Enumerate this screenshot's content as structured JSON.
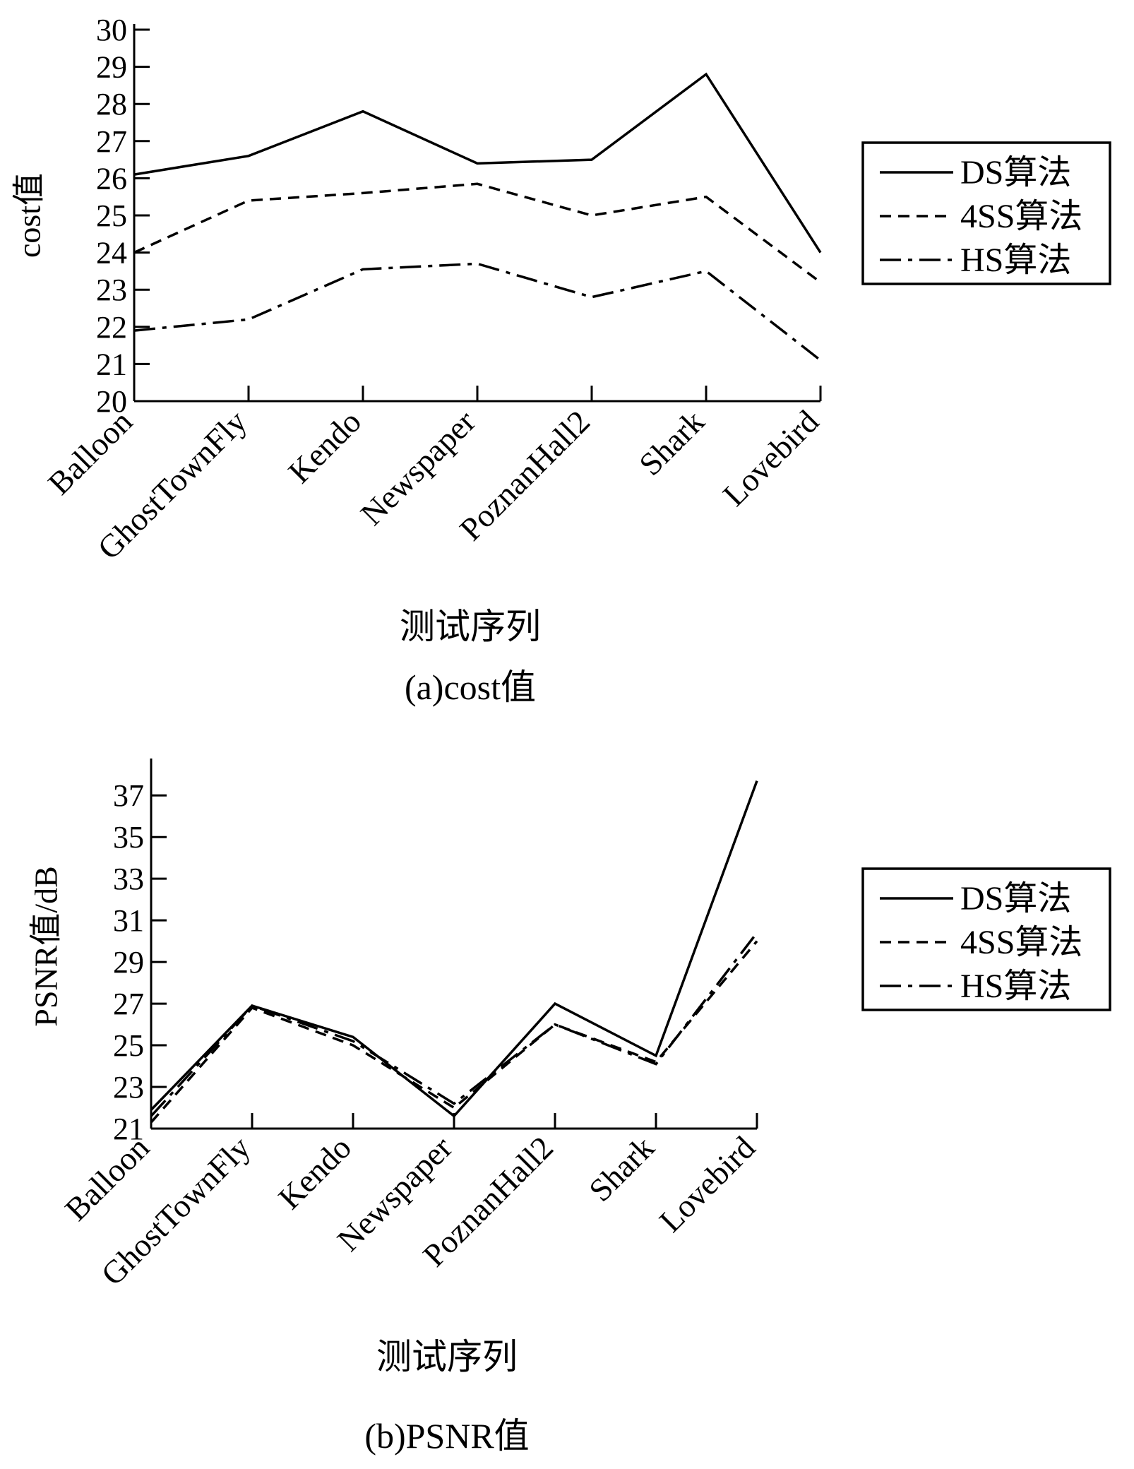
{
  "chart_data": [
    {
      "type": "line",
      "caption": "(a)cost值",
      "xlabel": "测试序列",
      "ylabel": "cost值",
      "categories": [
        "Balloon",
        "GhostTownFly",
        "Kendo",
        "Newspaper",
        "PoznanHall2",
        "Shark",
        "Lovebird"
      ],
      "ylim": [
        20,
        30
      ],
      "yticks": [
        20,
        21,
        22,
        23,
        24,
        25,
        26,
        27,
        28,
        29,
        30
      ],
      "legend_position": "right",
      "series": [
        {
          "name": "DS算法",
          "style": "solid",
          "values": [
            26.1,
            26.6,
            27.8,
            26.4,
            26.5,
            28.8,
            24.0
          ]
        },
        {
          "name": "4SS算法",
          "style": "dashed",
          "values": [
            24.0,
            25.4,
            25.6,
            25.85,
            25.0,
            25.5,
            23.2
          ]
        },
        {
          "name": "HS算法",
          "style": "dashdot",
          "values": [
            21.9,
            22.2,
            23.55,
            23.7,
            22.8,
            23.5,
            21.1
          ]
        }
      ]
    },
    {
      "type": "line",
      "caption": "(b)PSNR值",
      "xlabel": "测试序列",
      "ylabel": "PSNR值/dB",
      "categories": [
        "Balloon",
        "GhostTownFly",
        "Kendo",
        "Newspaper",
        "PoznanHall2",
        "Shark",
        "Lovebird"
      ],
      "ylim": [
        21,
        38.5
      ],
      "yticks": [
        21,
        23,
        25,
        27,
        29,
        31,
        33,
        35,
        37
      ],
      "legend_position": "right",
      "series": [
        {
          "name": "DS算法",
          "style": "solid",
          "values": [
            21.9,
            26.9,
            25.4,
            21.6,
            27.0,
            24.5,
            37.7
          ]
        },
        {
          "name": "4SS算法",
          "style": "dashed",
          "values": [
            21.3,
            26.8,
            25.0,
            22.0,
            26.0,
            24.2,
            30.0
          ]
        },
        {
          "name": "HS算法",
          "style": "dashdot",
          "values": [
            21.6,
            26.9,
            25.2,
            22.2,
            26.0,
            24.1,
            30.4
          ]
        }
      ]
    }
  ]
}
